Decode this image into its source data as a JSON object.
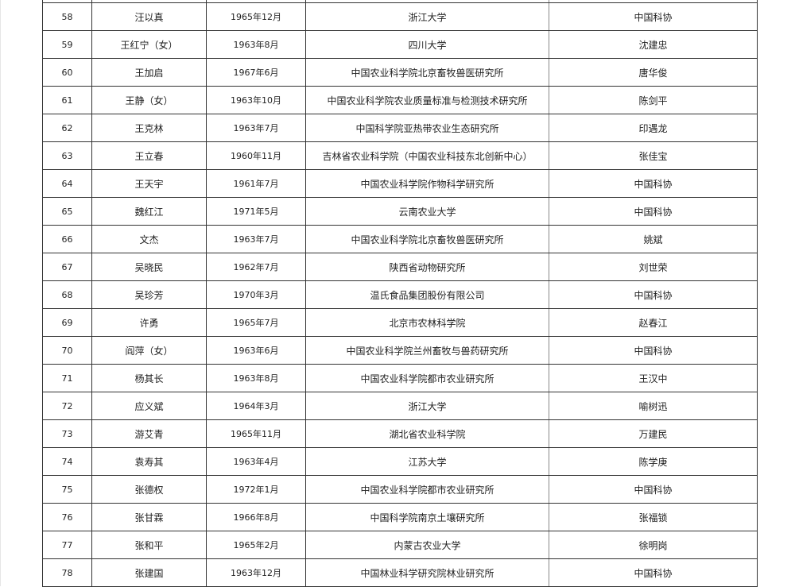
{
  "rows": [
    {
      "no": "",
      "name": "",
      "birth": "",
      "org": "",
      "recommender": ""
    },
    {
      "no": "58",
      "name": "汪以真",
      "birth": "1965年12月",
      "org": "浙江大学",
      "recommender": "中国科协"
    },
    {
      "no": "59",
      "name": "王红宁（女）",
      "birth": "1963年8月",
      "org": "四川大学",
      "recommender": "沈建忠"
    },
    {
      "no": "60",
      "name": "王加启",
      "birth": "1967年6月",
      "org": "中国农业科学院北京畜牧兽医研究所",
      "recommender": "唐华俊"
    },
    {
      "no": "61",
      "name": "王静（女）",
      "birth": "1963年10月",
      "org": "中国农业科学院农业质量标准与检测技术研究所",
      "recommender": "陈剑平"
    },
    {
      "no": "62",
      "name": "王克林",
      "birth": "1963年7月",
      "org": "中国科学院亚热带农业生态研究所",
      "recommender": "印遇龙"
    },
    {
      "no": "63",
      "name": "王立春",
      "birth": "1960年11月",
      "org": "吉林省农业科学院（中国农业科技东北创新中心）",
      "recommender": "张佳宝"
    },
    {
      "no": "64",
      "name": "王天宇",
      "birth": "1961年7月",
      "org": "中国农业科学院作物科学研究所",
      "recommender": "中国科协"
    },
    {
      "no": "65",
      "name": "魏红江",
      "birth": "1971年5月",
      "org": "云南农业大学",
      "recommender": "中国科协"
    },
    {
      "no": "66",
      "name": "文杰",
      "birth": "1963年7月",
      "org": "中国农业科学院北京畜牧兽医研究所",
      "recommender": "姚斌"
    },
    {
      "no": "67",
      "name": "吴晓民",
      "birth": "1962年7月",
      "org": "陕西省动物研究所",
      "recommender": "刘世荣"
    },
    {
      "no": "68",
      "name": "吴珍芳",
      "birth": "1970年3月",
      "org": "温氏食品集团股份有限公司",
      "recommender": "中国科协"
    },
    {
      "no": "69",
      "name": "许勇",
      "birth": "1965年7月",
      "org": "北京市农林科学院",
      "recommender": "赵春江"
    },
    {
      "no": "70",
      "name": "阎萍（女）",
      "birth": "1963年6月",
      "org": "中国农业科学院兰州畜牧与兽药研究所",
      "recommender": "中国科协"
    },
    {
      "no": "71",
      "name": "杨其长",
      "birth": "1963年8月",
      "org": "中国农业科学院都市农业研究所",
      "recommender": "王汉中"
    },
    {
      "no": "72",
      "name": "应义斌",
      "birth": "1964年3月",
      "org": "浙江大学",
      "recommender": "喻树迅"
    },
    {
      "no": "73",
      "name": "游艾青",
      "birth": "1965年11月",
      "org": "湖北省农业科学院",
      "recommender": "万建民"
    },
    {
      "no": "74",
      "name": "袁寿其",
      "birth": "1963年4月",
      "org": "江苏大学",
      "recommender": "陈学庚"
    },
    {
      "no": "75",
      "name": "张德权",
      "birth": "1972年1月",
      "org": "中国农业科学院都市农业研究所",
      "recommender": "中国科协"
    },
    {
      "no": "76",
      "name": "张甘霖",
      "birth": "1966年8月",
      "org": "中国科学院南京土壤研究所",
      "recommender": "张福锁"
    },
    {
      "no": "77",
      "name": "张和平",
      "birth": "1965年2月",
      "org": "内蒙古农业大学",
      "recommender": "徐明岗"
    },
    {
      "no": "78",
      "name": "张建国",
      "birth": "1963年12月",
      "org": "中国林业科学研究院林业研究所",
      "recommender": "中国科协"
    }
  ]
}
